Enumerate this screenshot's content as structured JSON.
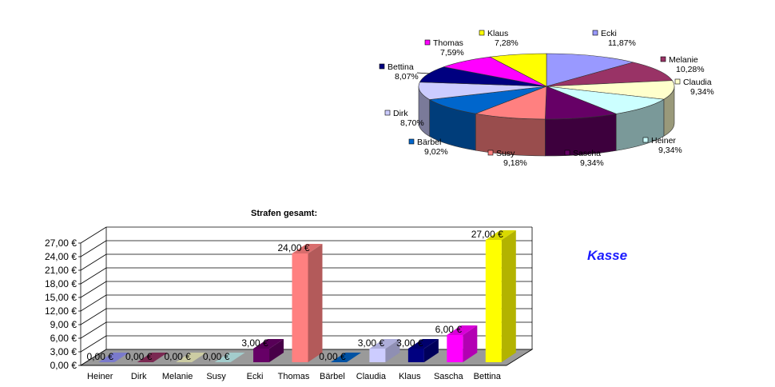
{
  "chart_data": [
    {
      "type": "pie",
      "title": "",
      "slices": [
        {
          "label": "Ecki",
          "percent_text": "11,87%",
          "value": 11.87,
          "color": "#9999ff"
        },
        {
          "label": "Melanie",
          "percent_text": "10,28%",
          "value": 10.28,
          "color": "#993366"
        },
        {
          "label": "Claudia",
          "percent_text": "9,34%",
          "value": 9.34,
          "color": "#ffffcc"
        },
        {
          "label": "Heiner",
          "percent_text": "9,34%",
          "value": 9.34,
          "color": "#ccffff"
        },
        {
          "label": "Sascha",
          "percent_text": "9,34%",
          "value": 9.34,
          "color": "#660066"
        },
        {
          "label": "Susy",
          "percent_text": "9,18%",
          "value": 9.18,
          "color": "#ff8080"
        },
        {
          "label": "Bärbel",
          "percent_text": "9,02%",
          "value": 9.02,
          "color": "#0066cc"
        },
        {
          "label": "Dirk",
          "percent_text": "8,70%",
          "value": 8.7,
          "color": "#ccccff"
        },
        {
          "label": "Bettina",
          "percent_text": "8,07%",
          "value": 8.07,
          "color": "#000080"
        },
        {
          "label": "Thomas",
          "percent_text": "7,59%",
          "value": 7.59,
          "color": "#ff00ff"
        },
        {
          "label": "Klaus",
          "percent_text": "7,28%",
          "value": 7.28,
          "color": "#ffff00"
        }
      ]
    },
    {
      "type": "bar",
      "title": "Strafen gesamt:",
      "categories": [
        "Heiner",
        "Dirk",
        "Melanie",
        "Susy",
        "Ecki",
        "Thomas",
        "Bärbel",
        "Claudia",
        "Klaus",
        "Sascha",
        "Bettina"
      ],
      "values": [
        0,
        0,
        0,
        0,
        3,
        24,
        0,
        3,
        3,
        6,
        27
      ],
      "value_labels": [
        "0,00 €",
        "0,00 €",
        "0,00 €",
        "0,00 €",
        "3,00 €",
        "24,00 €",
        "0,00 €",
        "3,00 €",
        "3,00 €",
        "6,00 €",
        "27,00 €"
      ],
      "colors": [
        "#9999ff",
        "#993366",
        "#ffffcc",
        "#ccffff",
        "#660066",
        "#ff8080",
        "#0066cc",
        "#ccccff",
        "#000080",
        "#ff00ff",
        "#ffff00"
      ],
      "y_ticks": [
        "0,00 €",
        "3,00 €",
        "6,00 €",
        "9,00 €",
        "12,00 €",
        "15,00 €",
        "18,00 €",
        "21,00 €",
        "24,00 €",
        "27,00 €"
      ],
      "ylim": [
        0,
        27
      ],
      "grid": true
    }
  ],
  "side_label": "Kasse"
}
